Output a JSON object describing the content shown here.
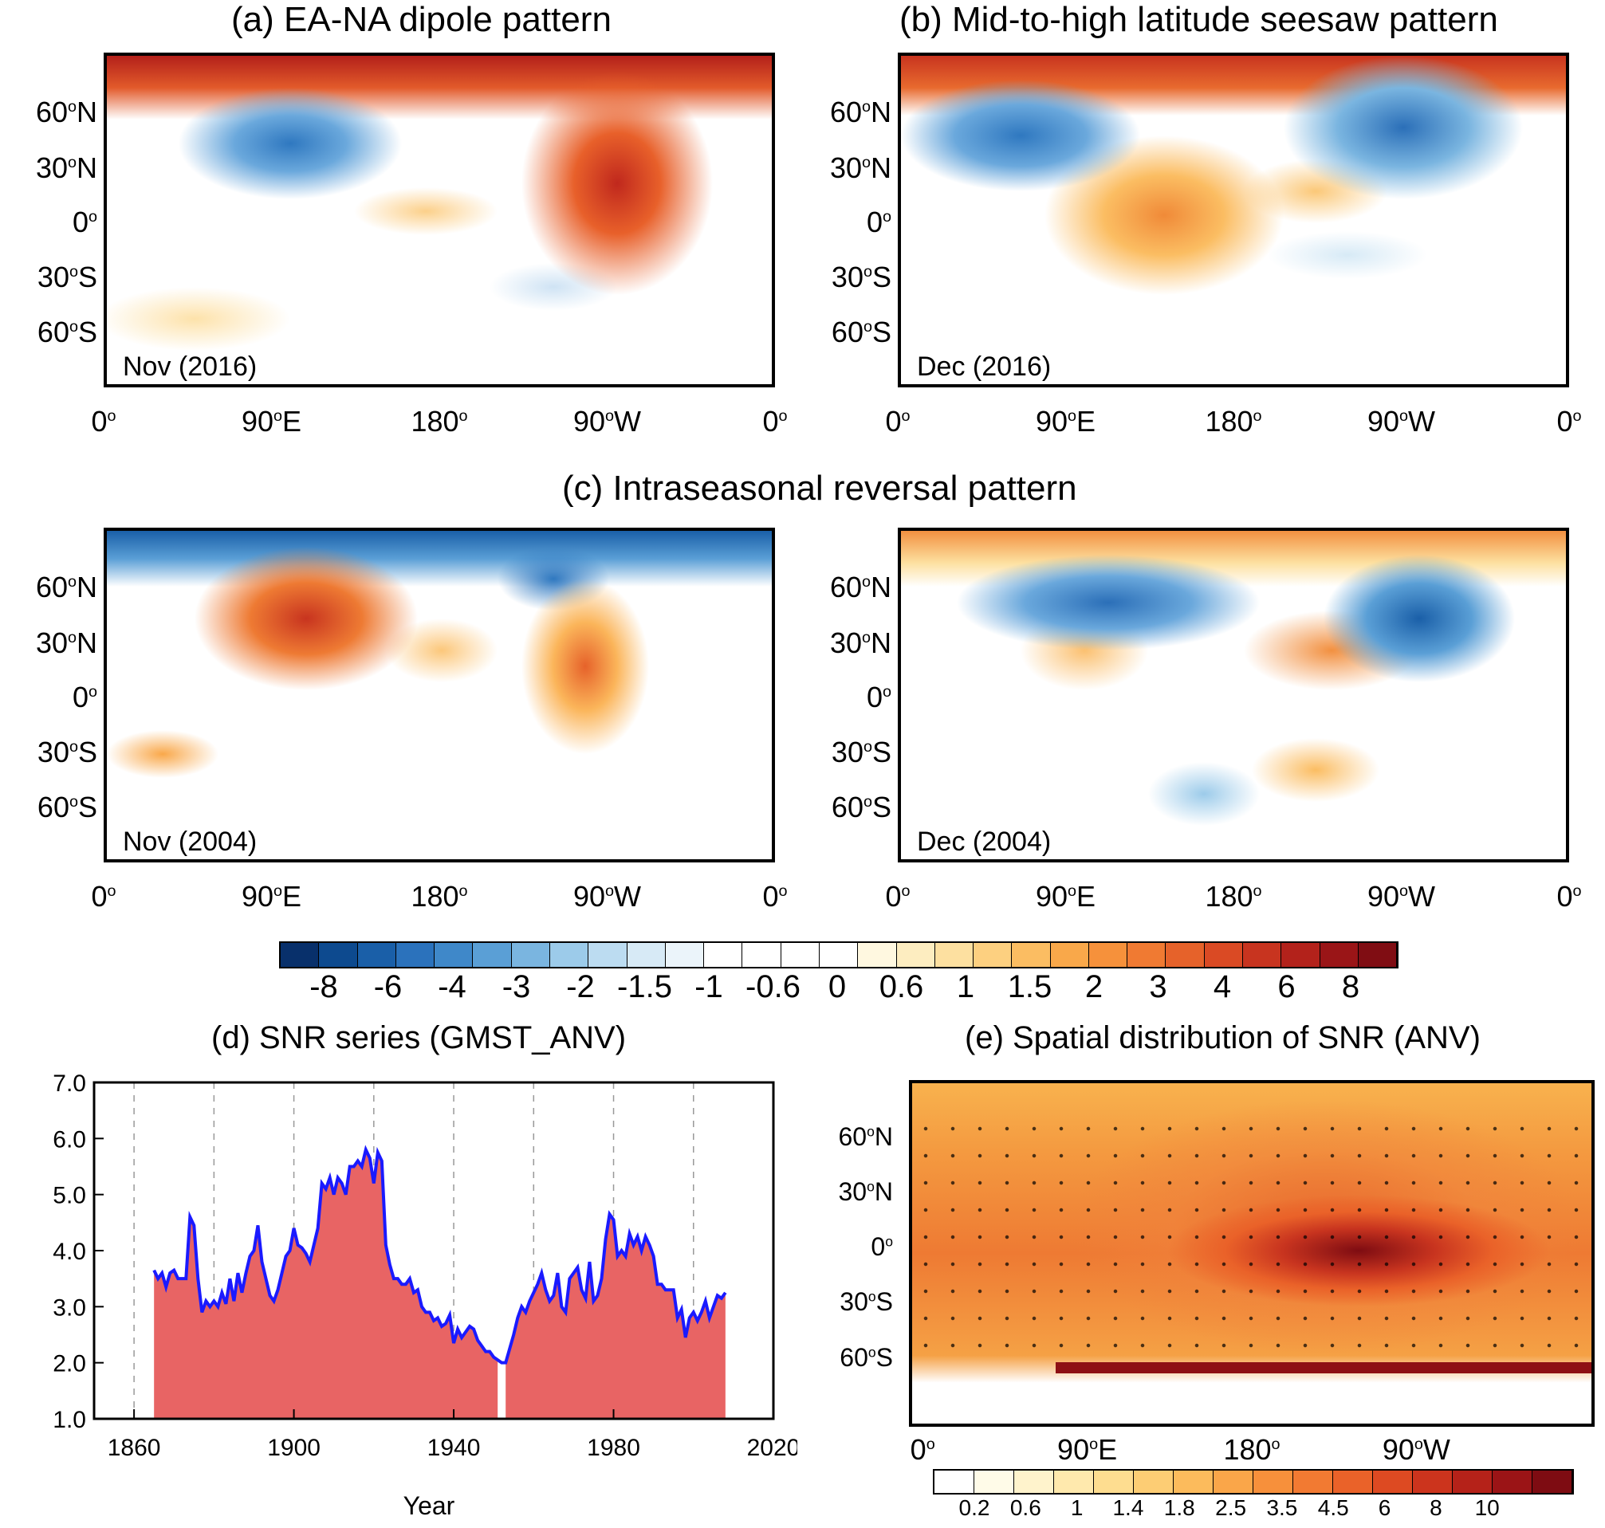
{
  "titles": {
    "a": "(a) EA-NA dipole pattern",
    "b": "(b) Mid-to-high latitude seesaw pattern",
    "c": "(c) Intraseasonal reversal pattern",
    "d": "(d) SNR series (GMST_ANV)",
    "e": "(e) Spatial distribution of SNR (ANV)"
  },
  "maps": {
    "a_label": "Nov (2016)",
    "b_label": "Dec (2016)",
    "c1_label": "Nov (2004)",
    "c2_label": "Dec (2004)"
  },
  "lat_ticks": [
    "60",
    "30",
    "0",
    "30",
    "60"
  ],
  "lat_hemis": [
    "N",
    "N",
    "",
    "S",
    "S"
  ],
  "lon_ticks": [
    "0",
    "90",
    "180",
    "90",
    "0"
  ],
  "lon_hemis": [
    "",
    "E",
    "",
    "W",
    ""
  ],
  "e_lon_ticks": [
    "0",
    "90",
    "180",
    "90"
  ],
  "e_lon_hemis": [
    "",
    "E",
    "",
    "W"
  ],
  "colorbar1": {
    "labels": [
      "-8",
      "-6",
      "-4",
      "-3",
      "-2",
      "-1.5",
      "-1",
      "-0.6",
      "0",
      "0.6",
      "1",
      "1.5",
      "2",
      "3",
      "4",
      "6",
      "8"
    ],
    "colors": [
      "#08306b",
      "#0d4a8f",
      "#1a5fa8",
      "#2b72bc",
      "#3f88c9",
      "#5a9fd6",
      "#7ab5e0",
      "#9ccbea",
      "#bcdcf1",
      "#d7eaf6",
      "#ebf4fa",
      "#ffffff",
      "#ffffff",
      "#ffffff",
      "#ffffff",
      "#fff8e0",
      "#fdedc0",
      "#fde0a0",
      "#fdd080",
      "#fbbd62",
      "#f9a84a",
      "#f6913b",
      "#f07a32",
      "#e6622a",
      "#da4a24",
      "#c8341f",
      "#b3221b",
      "#9a1517",
      "#800d13"
    ]
  },
  "colorbar2": {
    "labels": [
      "0.2",
      "0.6",
      "1",
      "1.4",
      "1.8",
      "2.5",
      "3.5",
      "4.5",
      "6",
      "8",
      "10"
    ],
    "colors": [
      "#ffffff",
      "#fffbe8",
      "#fff3cc",
      "#ffe9ad",
      "#fedd90",
      "#fdcd74",
      "#fcbb5c",
      "#faa649",
      "#f7903b",
      "#f27a32",
      "#ea6229",
      "#dd4a22",
      "#cc341d",
      "#b52219",
      "#9b1416",
      "#7e0c12"
    ]
  },
  "chart_data": {
    "type": "area",
    "title": "(d) SNR series (GMST_ANV)",
    "xlabel": "Year",
    "ylabel": "",
    "xlim": [
      1850,
      2020
    ],
    "ylim": [
      1.0,
      7.0
    ],
    "x_ticks": [
      1860,
      1900,
      1940,
      1980,
      2020
    ],
    "y_ticks": [
      "1.0",
      "2.0",
      "3.0",
      "4.0",
      "5.0",
      "6.0",
      "7.0"
    ],
    "gap_years": [
      1951,
      1953
    ],
    "fill_color": "#e86464",
    "line_color": "#1a1aff",
    "x": [
      1865,
      1866,
      1867,
      1868,
      1869,
      1870,
      1871,
      1872,
      1873,
      1874,
      1875,
      1876,
      1877,
      1878,
      1879,
      1880,
      1881,
      1882,
      1883,
      1884,
      1885,
      1886,
      1887,
      1888,
      1889,
      1890,
      1891,
      1892,
      1893,
      1894,
      1895,
      1896,
      1897,
      1898,
      1899,
      1900,
      1901,
      1902,
      1903,
      1904,
      1905,
      1906,
      1907,
      1908,
      1909,
      1910,
      1911,
      1912,
      1913,
      1914,
      1915,
      1916,
      1917,
      1918,
      1919,
      1920,
      1921,
      1922,
      1923,
      1924,
      1925,
      1926,
      1927,
      1928,
      1929,
      1930,
      1931,
      1932,
      1933,
      1934,
      1935,
      1936,
      1937,
      1938,
      1939,
      1940,
      1941,
      1942,
      1943,
      1944,
      1945,
      1946,
      1947,
      1948,
      1949,
      1950,
      1951,
      1952,
      1953,
      1954,
      1955,
      1956,
      1957,
      1958,
      1959,
      1960,
      1961,
      1962,
      1963,
      1964,
      1965,
      1966,
      1967,
      1968,
      1969,
      1970,
      1971,
      1972,
      1973,
      1974,
      1975,
      1976,
      1977,
      1978,
      1979,
      1980,
      1981,
      1982,
      1983,
      1984,
      1985,
      1986,
      1987,
      1988,
      1989,
      1990,
      1991,
      1992,
      1993,
      1994,
      1995,
      1996,
      1997,
      1998,
      1999,
      2000,
      2001,
      2002,
      2003,
      2004,
      2005,
      2006,
      2007,
      2008
    ],
    "y": [
      3.65,
      3.5,
      3.6,
      3.35,
      3.6,
      3.65,
      3.5,
      3.5,
      3.5,
      4.6,
      4.45,
      3.5,
      2.9,
      3.1,
      3.0,
      3.1,
      3.0,
      3.25,
      3.05,
      3.5,
      3.1,
      3.6,
      3.25,
      3.6,
      3.9,
      4.0,
      4.45,
      3.8,
      3.5,
      3.2,
      3.1,
      3.3,
      3.6,
      3.9,
      4.0,
      4.4,
      4.1,
      4.05,
      3.95,
      3.8,
      4.1,
      4.4,
      5.2,
      5.1,
      5.3,
      5.0,
      5.3,
      5.2,
      5.0,
      5.5,
      5.5,
      5.6,
      5.5,
      5.8,
      5.65,
      5.2,
      5.75,
      5.6,
      4.1,
      3.75,
      3.5,
      3.5,
      3.4,
      3.4,
      3.5,
      3.25,
      3.3,
      3.0,
      2.9,
      2.9,
      2.75,
      2.8,
      2.65,
      2.7,
      2.85,
      2.35,
      2.6,
      2.45,
      2.55,
      2.65,
      2.6,
      2.4,
      2.3,
      2.2,
      2.2,
      2.1,
      2.05,
      2.0,
      2.0,
      2.25,
      2.5,
      2.8,
      3.0,
      2.9,
      3.1,
      3.25,
      3.4,
      3.6,
      3.3,
      3.1,
      3.2,
      3.6,
      3.0,
      2.9,
      3.5,
      3.6,
      3.7,
      3.3,
      3.15,
      3.8,
      3.1,
      3.2,
      3.5,
      4.2,
      4.65,
      4.55,
      3.9,
      4.0,
      3.9,
      4.3,
      4.1,
      4.25,
      4.0,
      4.25,
      4.1,
      3.9,
      3.4,
      3.4,
      3.3,
      3.3,
      3.3,
      2.8,
      2.95,
      2.45,
      2.8,
      2.9,
      2.75,
      2.9,
      3.1,
      2.8,
      3.0,
      3.2,
      3.15,
      3.25
    ]
  }
}
